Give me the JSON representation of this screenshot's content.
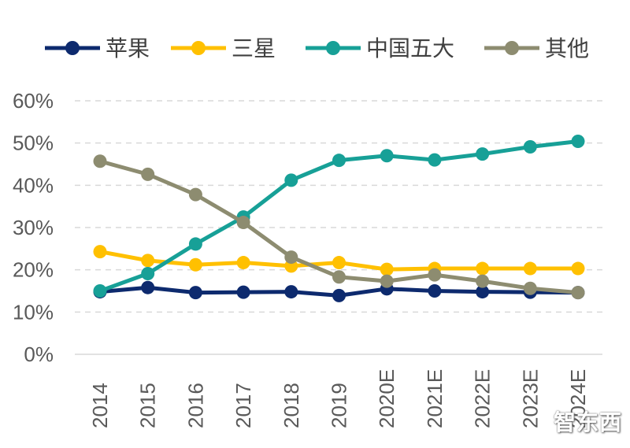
{
  "chart_data": {
    "type": "line",
    "categories": [
      "2014",
      "2015",
      "2016",
      "2017",
      "2018",
      "2019",
      "2020E",
      "2021E",
      "2022E",
      "2023E",
      "2024E"
    ],
    "series": [
      {
        "name": "苹果",
        "color": "#0d2a6e",
        "values": [
          14.8,
          15.8,
          14.6,
          14.7,
          14.8,
          13.9,
          15.5,
          15.0,
          14.8,
          14.7,
          14.6
        ]
      },
      {
        "name": "三星",
        "color": "#ffc000",
        "values": [
          24.3,
          22.2,
          21.2,
          21.7,
          20.9,
          21.7,
          20.1,
          20.3,
          20.3,
          20.3,
          20.3
        ]
      },
      {
        "name": "中国五大",
        "color": "#17a097",
        "values": [
          15.0,
          19.1,
          26.1,
          32.5,
          41.2,
          45.9,
          47.0,
          46.0,
          47.4,
          49.1,
          50.4
        ]
      },
      {
        "name": "其他",
        "color": "#8d8c70",
        "values": [
          45.7,
          42.6,
          37.8,
          31.2,
          23.0,
          18.3,
          17.3,
          18.8,
          17.3,
          15.6,
          14.6
        ]
      }
    ],
    "yticks": [
      "0%",
      "10%",
      "20%",
      "30%",
      "40%",
      "50%",
      "60%"
    ],
    "ylim": [
      0,
      60
    ],
    "grid": true,
    "legend_position": "top"
  },
  "watermark": "智东西"
}
